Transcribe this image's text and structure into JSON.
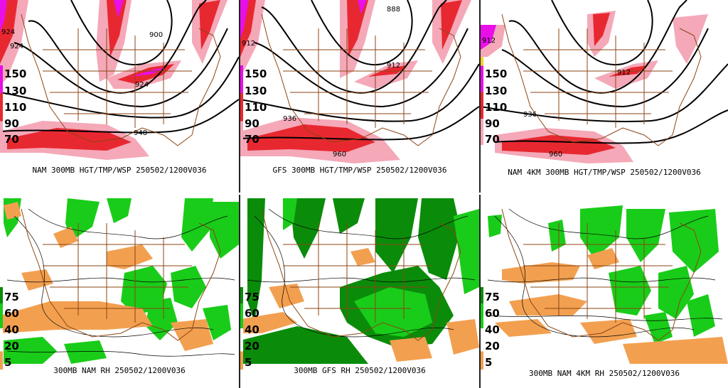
{
  "panels": [
    {
      "id": "nam-300mb-wsp",
      "caption": "NAM 300MB HGT/TMP/WSP 250502/1200V036",
      "legend": [
        "150",
        "130",
        "110",
        "90",
        "70"
      ],
      "contour_labels": [
        "924",
        "900",
        "924",
        "924",
        "948"
      ],
      "colors": {
        "high": "#e80fe8",
        "mid": "#e82830",
        "low": "#f4a8b8"
      }
    },
    {
      "id": "gfs-300mb-wsp",
      "caption": "GFS 300MB HGT/TMP/WSP 250502/1200V036",
      "legend": [
        "150",
        "130",
        "110",
        "90",
        "70"
      ],
      "contour_labels": [
        "912",
        "888",
        "912",
        "936",
        "960"
      ],
      "colors": {
        "high": "#e80fe8",
        "mid": "#e82830",
        "low": "#f4a8b8"
      }
    },
    {
      "id": "nam4km-300mb-wsp",
      "caption": "NAM 4KM 300MB HGT/TMP/WSP 250502/1200V036",
      "legend": [
        "150",
        "130",
        "110",
        "90",
        "70"
      ],
      "contour_labels": [
        "912",
        "912",
        "936",
        "960"
      ],
      "colors": {
        "high": "#e80fe8",
        "mid": "#e82830",
        "low": "#f4a8b8"
      }
    },
    {
      "id": "nam-300mb-rh",
      "caption": "300MB NAM RH 250502/1200V036",
      "legend": [
        "75",
        "60",
        "40",
        "20",
        "5"
      ],
      "colors": {
        "moist": "#19cc19",
        "very_moist": "#0a8c0a",
        "dry": "#f2a050"
      }
    },
    {
      "id": "gfs-300mb-rh",
      "caption": "300MB GFS RH 250502/1200V036",
      "legend": [
        "75",
        "60",
        "40",
        "20",
        "5"
      ],
      "colors": {
        "moist": "#19cc19",
        "very_moist": "#0a8c0a",
        "dry": "#f2a050"
      }
    },
    {
      "id": "nam4km-300mb-rh",
      "caption": "300MB NAM 4KM RH 250502/1200V036",
      "legend": [
        "75",
        "60",
        "40",
        "20",
        "5"
      ],
      "colors": {
        "moist": "#19cc19",
        "very_moist": "#0a8c0a",
        "dry": "#f2a050"
      }
    }
  ]
}
